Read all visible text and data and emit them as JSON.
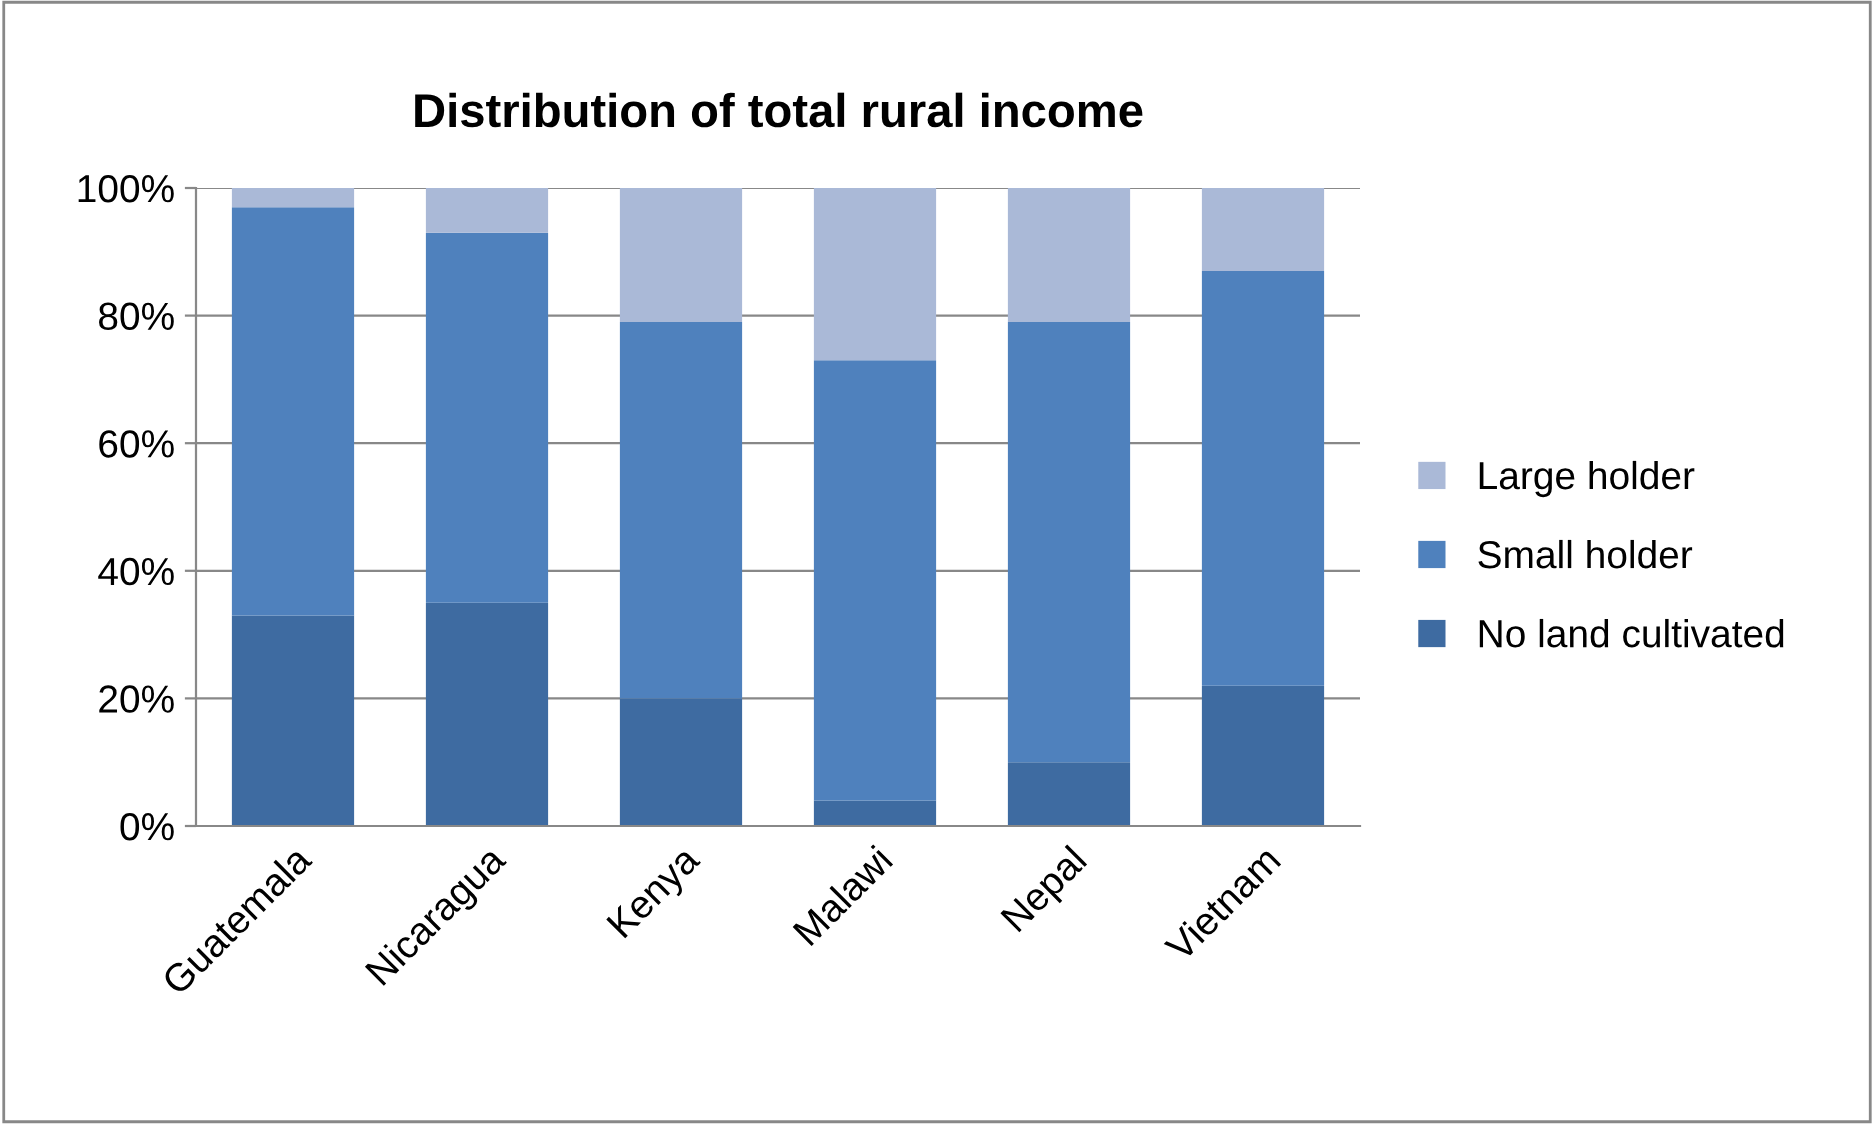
{
  "chart_data": {
    "type": "bar",
    "title": "Distribution of total rural income",
    "categories": [
      "Guatemala",
      "Nicaragua",
      "Kenya",
      "Malawi",
      "Nepal",
      "Vietnam"
    ],
    "stacked": true,
    "series": [
      {
        "name": "No land cultivated",
        "color": "#3e6ba1",
        "values": [
          33,
          35,
          20,
          4,
          10,
          22
        ]
      },
      {
        "name": "Small holder",
        "color": "#4f81bd",
        "values": [
          64,
          58,
          59,
          69,
          69,
          65
        ]
      },
      {
        "name": "Large holder",
        "color": "#aab9d7",
        "values": [
          3,
          7,
          21,
          27,
          21,
          13
        ]
      }
    ],
    "ylim": [
      0,
      100
    ],
    "yticks": [
      {
        "value": 0,
        "label": "0%"
      },
      {
        "value": 20,
        "label": "20%"
      },
      {
        "value": 40,
        "label": "40%"
      },
      {
        "value": 60,
        "label": "60%"
      },
      {
        "value": 80,
        "label": "80%"
      },
      {
        "value": 100,
        "label": "100%"
      }
    ],
    "grid": "y",
    "legend": "right"
  }
}
